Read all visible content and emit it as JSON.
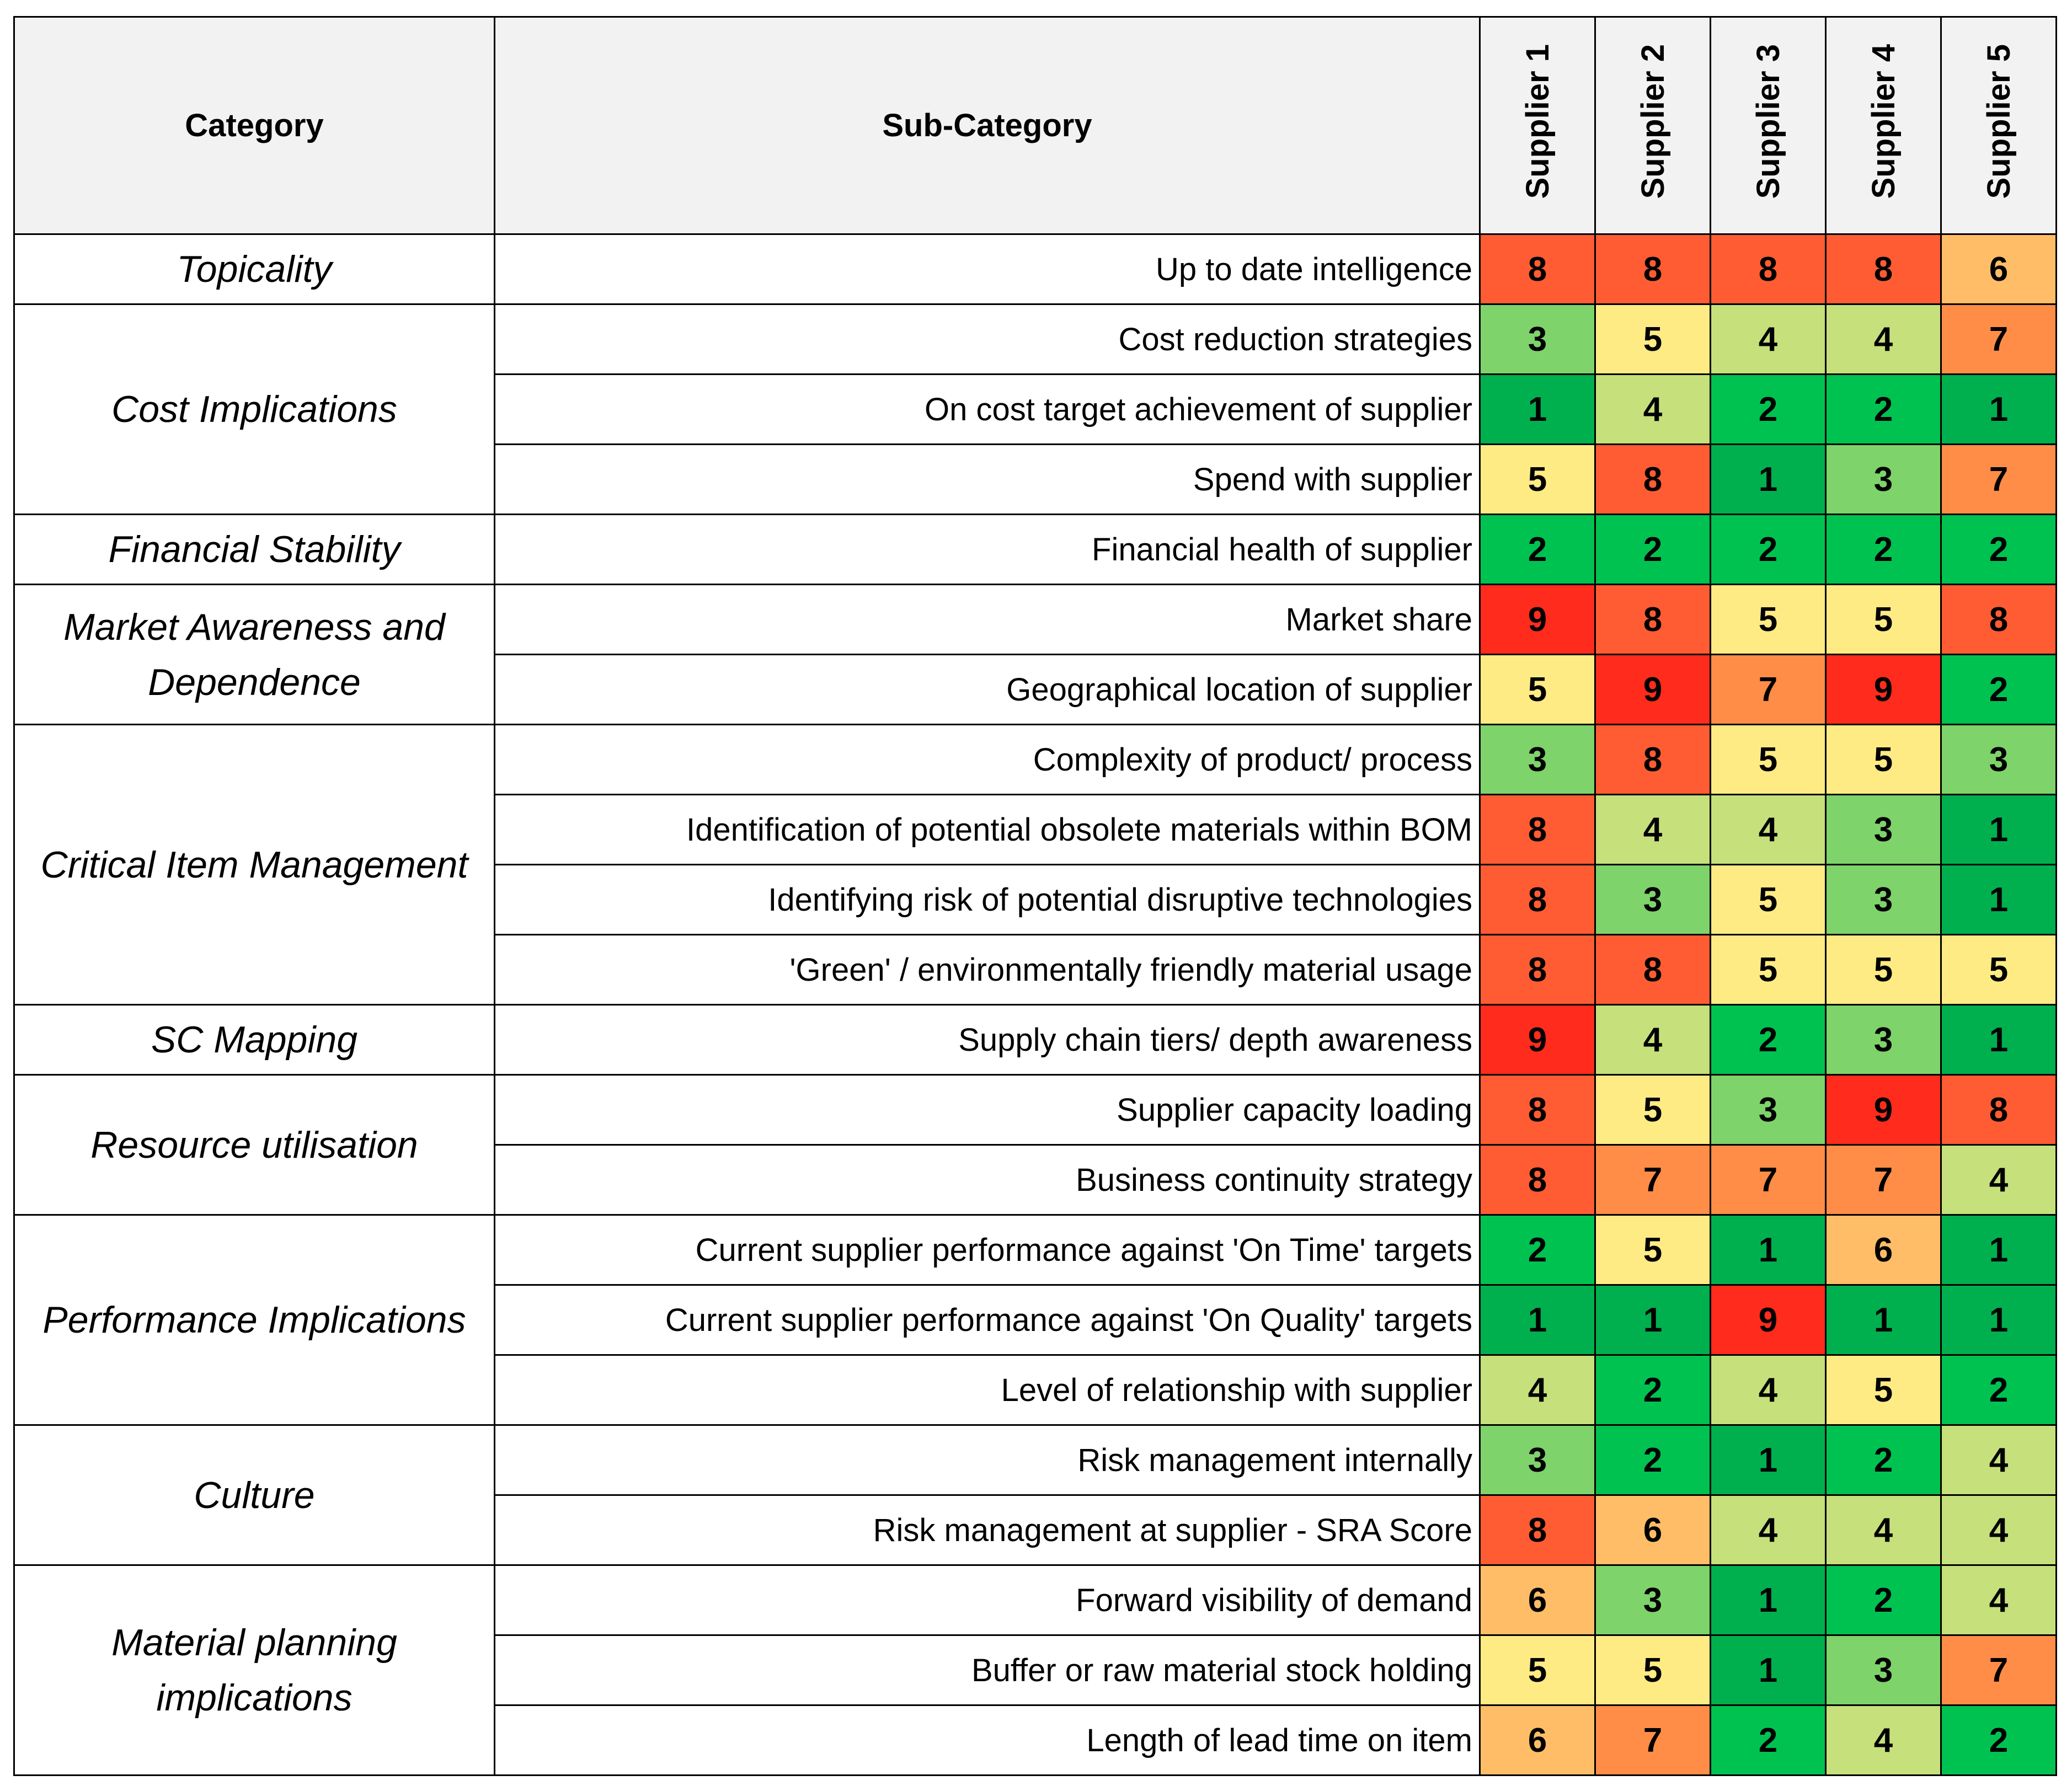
{
  "table": {
    "columns": [
      "Category",
      "Sub-Category",
      "Supplier 1",
      "Supplier 2",
      "Supplier 3",
      "Supplier 4",
      "Supplier 5"
    ],
    "colors": [
      "#00b04f",
      "#00c250",
      "#7ed36a",
      "#c6e07b",
      "#ffeb84",
      "#ffbd67",
      "#ff8d47",
      "#ff5c33",
      "#ff2b1c"
    ],
    "groups": [
      {
        "category": "Topicality",
        "rows": [
          {
            "label": "Up to date intelligence",
            "scores": [
              8,
              8,
              8,
              8,
              6
            ]
          }
        ]
      },
      {
        "category": "Cost Implications",
        "rows": [
          {
            "label": "Cost reduction strategies",
            "scores": [
              3,
              5,
              4,
              4,
              7
            ]
          },
          {
            "label": "On cost target achievement of supplier",
            "scores": [
              1,
              4,
              2,
              2,
              1
            ]
          },
          {
            "label": "Spend with supplier",
            "scores": [
              5,
              8,
              1,
              3,
              7
            ]
          }
        ]
      },
      {
        "category": "Financial Stability",
        "rows": [
          {
            "label": "Financial health of supplier",
            "scores": [
              2,
              2,
              2,
              2,
              2
            ]
          }
        ]
      },
      {
        "category": "Market Awareness and Dependence",
        "rows": [
          {
            "label": "Market share",
            "scores": [
              9,
              8,
              5,
              5,
              8
            ]
          },
          {
            "label": "Geographical location of supplier",
            "scores": [
              5,
              9,
              7,
              9,
              2
            ]
          }
        ]
      },
      {
        "category": "Critical Item Management",
        "rows": [
          {
            "label": "Complexity of product/ process",
            "scores": [
              3,
              8,
              5,
              5,
              3
            ]
          },
          {
            "label": "Identification of potential obsolete materials within BOM",
            "scores": [
              8,
              4,
              4,
              3,
              1
            ]
          },
          {
            "label": "Identifying risk of potential disruptive technologies",
            "scores": [
              8,
              3,
              5,
              3,
              1
            ]
          },
          {
            "label": "'Green' / environmentally friendly material usage",
            "scores": [
              8,
              8,
              5,
              5,
              5
            ]
          }
        ]
      },
      {
        "category": "SC Mapping",
        "rows": [
          {
            "label": "Supply chain tiers/ depth awareness",
            "scores": [
              9,
              4,
              2,
              3,
              1
            ]
          }
        ]
      },
      {
        "category": "Resource utilisation",
        "rows": [
          {
            "label": "Supplier capacity loading",
            "scores": [
              8,
              5,
              3,
              9,
              8
            ]
          },
          {
            "label": "Business continuity strategy",
            "scores": [
              8,
              7,
              7,
              7,
              4
            ]
          }
        ]
      },
      {
        "category": "Performance Implications",
        "rows": [
          {
            "label": "Current supplier performance against 'On Time' targets",
            "scores": [
              2,
              5,
              1,
              6,
              1
            ]
          },
          {
            "label": "Current supplier performance against 'On Quality' targets",
            "scores": [
              1,
              1,
              9,
              1,
              1
            ]
          },
          {
            "label": "Level of relationship with supplier",
            "scores": [
              4,
              2,
              4,
              5,
              2
            ]
          }
        ]
      },
      {
        "category": "Culture",
        "rows": [
          {
            "label": "Risk management internally",
            "scores": [
              3,
              2,
              1,
              2,
              4
            ]
          },
          {
            "label": "Risk management at supplier - SRA Score",
            "scores": [
              8,
              6,
              4,
              4,
              4
            ]
          }
        ]
      },
      {
        "category": "Material planning implications",
        "rows": [
          {
            "label": "Forward visibility of demand",
            "scores": [
              6,
              3,
              1,
              2,
              4
            ]
          },
          {
            "label": "Buffer or raw material stock holding",
            "scores": [
              5,
              5,
              1,
              3,
              7
            ]
          },
          {
            "label": "Length of lead time on item",
            "scores": [
              6,
              7,
              2,
              4,
              2
            ]
          }
        ]
      }
    ]
  }
}
